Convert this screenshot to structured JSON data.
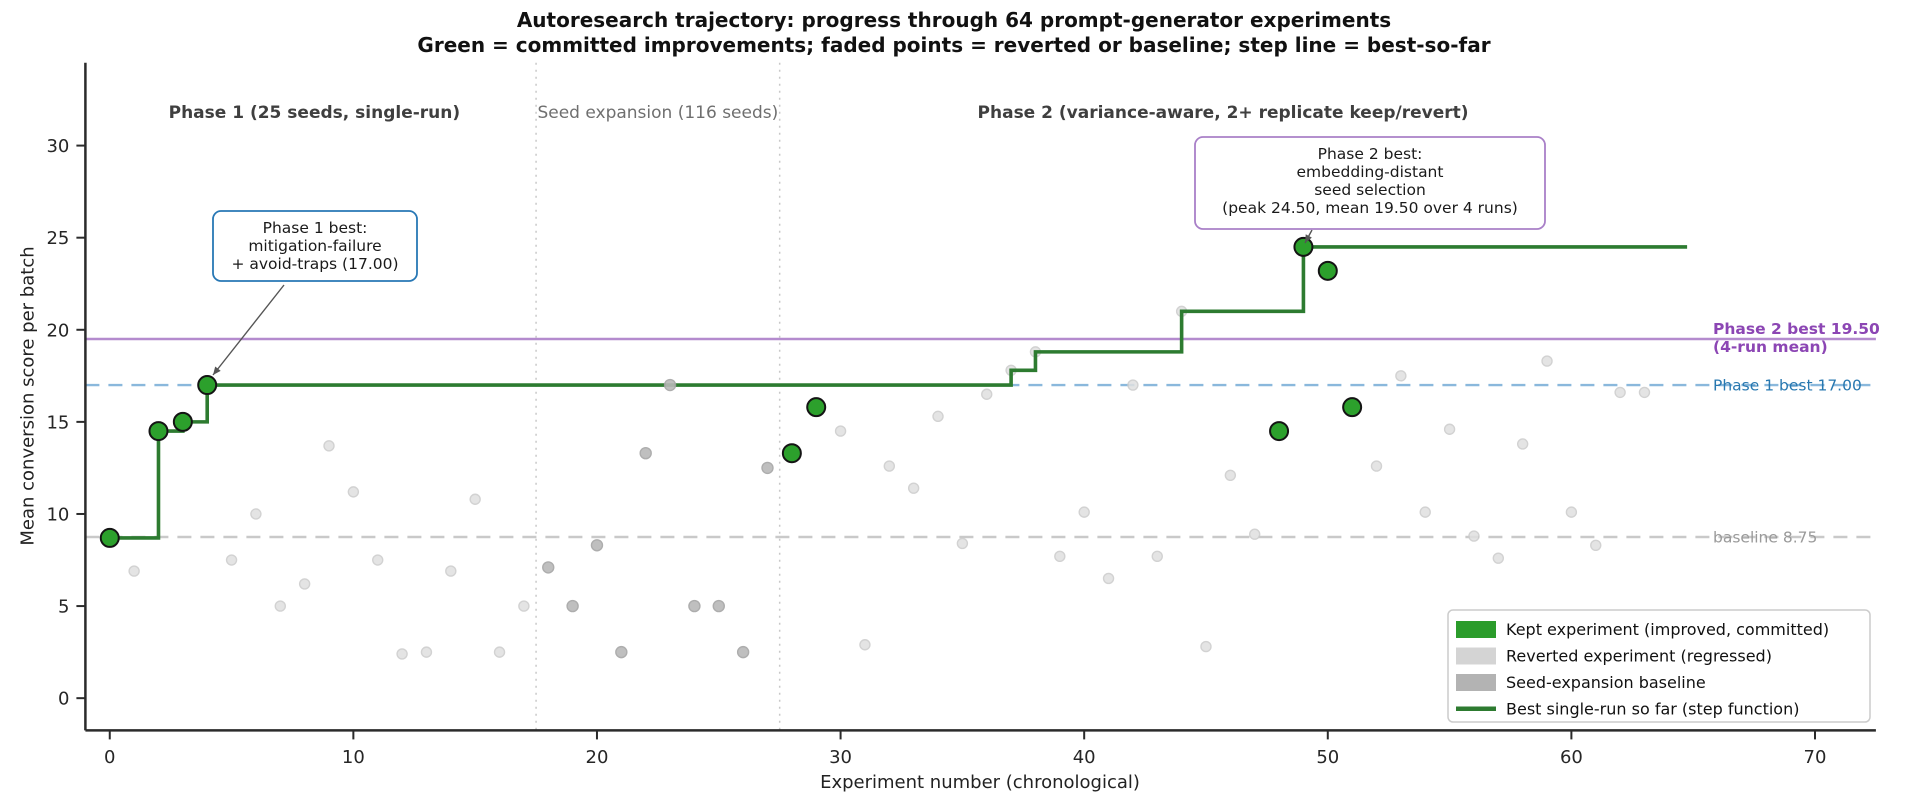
{
  "colors": {
    "kept": "#2ca02c",
    "kept_edge": "#141414",
    "reverted": "#e0e0e0",
    "reverted_edge": "#cbcbcb",
    "seed": "#b9b9b9",
    "seed_edge": "#a5a5a5",
    "step": "#2d7b30",
    "legend_kept": "#2b9c2b",
    "legend_reverted": "#d4d4d4",
    "legend_seed": "#b3b3b3",
    "phase2_line": "#b48bce",
    "phase2_text": "#8c46b4",
    "phase1_line": "#8ab8dc",
    "phase1_text": "#2878b0",
    "baseline_line": "#c9c9c9",
    "baseline_text": "#9a9a9a",
    "separator": "#c8c8c8",
    "spine": "#2b2b2b",
    "tick_label": "#262626",
    "phase_label": "#3f3f3f",
    "seed_label": "#6f6f6f",
    "annotation_text": "#1a1a1a",
    "annotation1_border": "#2878b5",
    "annotation2_border": "#a980c8",
    "legend_border": "#cccccc",
    "arrow": "#555555"
  },
  "chart_data": {
    "type": "scatter+step",
    "title": "Autoresearch trajectory: progress through 64 prompt-generator experiments",
    "subtitle": "Green = committed improvements; faded points = reverted or baseline; step line = best-so-far",
    "xlabel": "Experiment number (chronological)",
    "ylabel": "Mean conversion score per batch",
    "xlim": [
      -1,
      72.5
    ],
    "ylim": [
      -1.75,
      34.5
    ],
    "xticks": [
      0,
      10,
      20,
      30,
      40,
      50,
      60,
      70
    ],
    "yticks": [
      0,
      5,
      10,
      15,
      20,
      25,
      30
    ],
    "grid": false,
    "phase_separators_x": [
      17.5,
      27.5
    ],
    "phase_labels": [
      {
        "text": "Phase 1  (25 seeds, single-run)",
        "x": 8.4,
        "bold": true
      },
      {
        "text": "Seed expansion (116 seeds)",
        "x": 22.5,
        "bold": false
      },
      {
        "text": "Phase 2  (variance-aware, 2+ replicate keep/revert)",
        "x": 45.7,
        "bold": true
      }
    ],
    "ref_lines": [
      {
        "name": "baseline",
        "y": 8.75,
        "style": "dashed",
        "label": "baseline 8.75",
        "label2": "",
        "bold": false
      },
      {
        "name": "phase1-best",
        "y": 17.0,
        "style": "dashed",
        "label": "Phase 1 best 17.00",
        "label2": "",
        "bold": false
      },
      {
        "name": "phase2-best",
        "y": 19.5,
        "style": "solid",
        "label": "Phase 2 best 19.50",
        "label2": "(4-run mean)",
        "bold": true
      }
    ],
    "legend": {
      "items": [
        {
          "label": "Kept experiment (improved, committed)",
          "swatch": "patch",
          "color_key": "legend_kept"
        },
        {
          "label": "Reverted experiment (regressed)",
          "swatch": "patch",
          "color_key": "legend_reverted"
        },
        {
          "label": "Seed-expansion baseline",
          "swatch": "patch",
          "color_key": "legend_seed"
        },
        {
          "label": "Best single-run so far (step function)",
          "swatch": "line",
          "color_key": "step"
        }
      ]
    },
    "annotations": [
      {
        "name": "phase1-best",
        "lines": [
          "Phase 1 best:",
          "mitigation-failure",
          "+ avoid-traps (17.00)"
        ],
        "points_to_experiment": 4,
        "border_key": "annotation1_border"
      },
      {
        "name": "phase2-best",
        "lines": [
          "Phase 2 best:",
          "embedding-distant",
          "seed selection",
          "(peak 24.50, mean 19.50 over 4 runs)"
        ],
        "points_to_experiment": 49,
        "border_key": "annotation2_border"
      }
    ],
    "step": {
      "end_x": 64.75,
      "start_x": 0
    },
    "points": [
      {
        "x": 0,
        "y": 8.7,
        "status": "kept"
      },
      {
        "x": 1,
        "y": 6.9,
        "status": "reverted"
      },
      {
        "x": 2,
        "y": 14.5,
        "status": "kept"
      },
      {
        "x": 3,
        "y": 15.0,
        "status": "kept"
      },
      {
        "x": 4,
        "y": 17.0,
        "status": "kept"
      },
      {
        "x": 5,
        "y": 7.5,
        "status": "reverted"
      },
      {
        "x": 6,
        "y": 10.0,
        "status": "reverted"
      },
      {
        "x": 7,
        "y": 5.0,
        "status": "reverted"
      },
      {
        "x": 8,
        "y": 6.2,
        "status": "reverted"
      },
      {
        "x": 9,
        "y": 13.7,
        "status": "reverted"
      },
      {
        "x": 10,
        "y": 11.2,
        "status": "reverted"
      },
      {
        "x": 11,
        "y": 7.5,
        "status": "reverted"
      },
      {
        "x": 12,
        "y": 2.4,
        "status": "reverted"
      },
      {
        "x": 13,
        "y": 2.5,
        "status": "reverted"
      },
      {
        "x": 14,
        "y": 6.9,
        "status": "reverted"
      },
      {
        "x": 15,
        "y": 10.8,
        "status": "reverted"
      },
      {
        "x": 16,
        "y": 2.5,
        "status": "reverted"
      },
      {
        "x": 17,
        "y": 5.0,
        "status": "reverted"
      },
      {
        "x": 18,
        "y": 7.1,
        "status": "seed"
      },
      {
        "x": 19,
        "y": 5.0,
        "status": "seed"
      },
      {
        "x": 20,
        "y": 8.3,
        "status": "seed"
      },
      {
        "x": 21,
        "y": 2.5,
        "status": "seed"
      },
      {
        "x": 22,
        "y": 13.3,
        "status": "seed"
      },
      {
        "x": 23,
        "y": 17.0,
        "status": "seed"
      },
      {
        "x": 24,
        "y": 5.0,
        "status": "seed"
      },
      {
        "x": 25,
        "y": 5.0,
        "status": "seed"
      },
      {
        "x": 26,
        "y": 2.5,
        "status": "seed"
      },
      {
        "x": 27,
        "y": 12.5,
        "status": "seed"
      },
      {
        "x": 28,
        "y": 13.3,
        "status": "kept"
      },
      {
        "x": 29,
        "y": 15.8,
        "status": "kept"
      },
      {
        "x": 30,
        "y": 14.5,
        "status": "reverted"
      },
      {
        "x": 31,
        "y": 2.9,
        "status": "reverted"
      },
      {
        "x": 32,
        "y": 12.6,
        "status": "reverted"
      },
      {
        "x": 33,
        "y": 11.4,
        "status": "reverted"
      },
      {
        "x": 34,
        "y": 15.3,
        "status": "reverted"
      },
      {
        "x": 35,
        "y": 8.4,
        "status": "reverted"
      },
      {
        "x": 36,
        "y": 16.5,
        "status": "reverted"
      },
      {
        "x": 37,
        "y": 17.8,
        "status": "reverted"
      },
      {
        "x": 38,
        "y": 18.8,
        "status": "reverted"
      },
      {
        "x": 39,
        "y": 7.7,
        "status": "reverted"
      },
      {
        "x": 40,
        "y": 10.1,
        "status": "reverted"
      },
      {
        "x": 41,
        "y": 6.5,
        "status": "reverted"
      },
      {
        "x": 42,
        "y": 17.0,
        "status": "reverted"
      },
      {
        "x": 43,
        "y": 7.7,
        "status": "reverted"
      },
      {
        "x": 44,
        "y": 21.0,
        "status": "reverted"
      },
      {
        "x": 45,
        "y": 2.8,
        "status": "reverted"
      },
      {
        "x": 46,
        "y": 12.1,
        "status": "reverted"
      },
      {
        "x": 47,
        "y": 8.9,
        "status": "reverted"
      },
      {
        "x": 48,
        "y": 14.5,
        "status": "kept"
      },
      {
        "x": 49,
        "y": 24.5,
        "status": "kept"
      },
      {
        "x": 50,
        "y": 23.2,
        "status": "kept"
      },
      {
        "x": 51,
        "y": 15.8,
        "status": "kept"
      },
      {
        "x": 52,
        "y": 12.6,
        "status": "reverted"
      },
      {
        "x": 53,
        "y": 17.5,
        "status": "reverted"
      },
      {
        "x": 54,
        "y": 10.1,
        "status": "reverted"
      },
      {
        "x": 55,
        "y": 14.6,
        "status": "reverted"
      },
      {
        "x": 56,
        "y": 8.8,
        "status": "reverted"
      },
      {
        "x": 57,
        "y": 7.6,
        "status": "reverted"
      },
      {
        "x": 58,
        "y": 13.8,
        "status": "reverted"
      },
      {
        "x": 59,
        "y": 18.3,
        "status": "reverted"
      },
      {
        "x": 60,
        "y": 10.1,
        "status": "reverted"
      },
      {
        "x": 61,
        "y": 8.3,
        "status": "reverted"
      },
      {
        "x": 62,
        "y": 16.6,
        "status": "reverted"
      },
      {
        "x": 63,
        "y": 16.6,
        "status": "reverted"
      }
    ]
  }
}
